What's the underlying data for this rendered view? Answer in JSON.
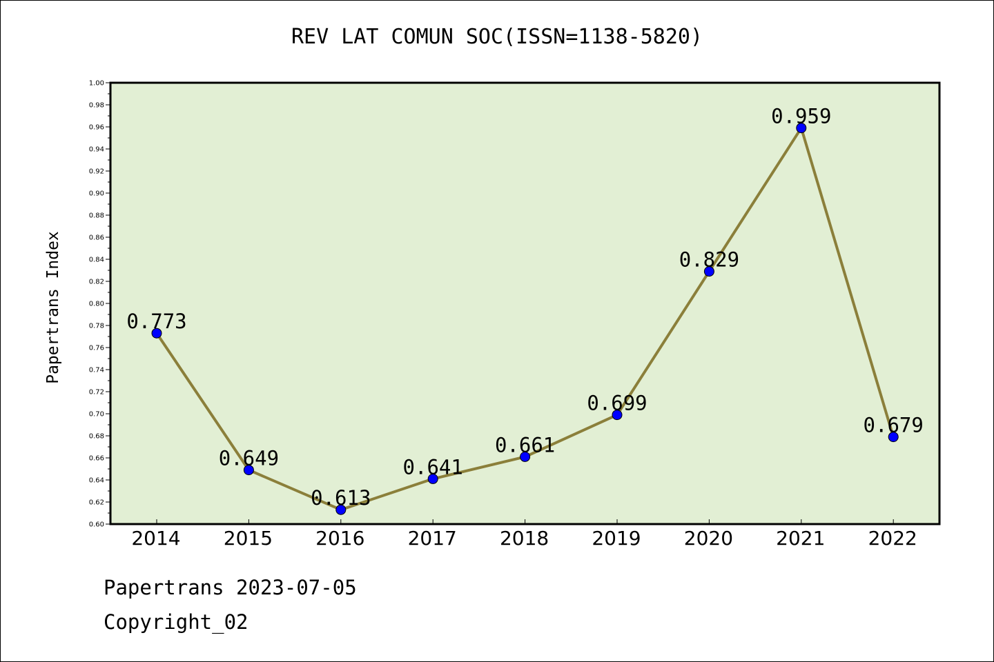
{
  "chart_data": {
    "type": "line",
    "title": "REV LAT COMUN SOC(ISSN=1138-5820)",
    "xlabel": "",
    "ylabel": "Papertrans Index",
    "categories": [
      "2014",
      "2015",
      "2016",
      "2017",
      "2018",
      "2019",
      "2020",
      "2021",
      "2022"
    ],
    "series": [
      {
        "values": [
          0.773,
          0.649,
          0.613,
          0.641,
          0.661,
          0.699,
          0.829,
          0.959,
          0.679
        ],
        "data_labels": [
          "0.773",
          "0.649",
          "0.613",
          "0.641",
          "0.661",
          "0.699",
          "0.829",
          "0.959",
          "0.679"
        ],
        "line_color": "#8b7f3a",
        "marker_color": "#0000ff"
      }
    ],
    "ylim": [
      0.6,
      1.0
    ],
    "y_ticks": [
      "0.60",
      "0.62",
      "0.64",
      "0.66",
      "0.68",
      "0.70",
      "0.72",
      "0.74",
      "0.76",
      "0.78",
      "0.80",
      "0.82",
      "0.84",
      "0.86",
      "0.88",
      "0.90",
      "0.92",
      "0.94",
      "0.96",
      "0.98",
      "1.00"
    ],
    "plot_background": "#e2efd4",
    "grid": false,
    "legend": "none"
  },
  "footer": {
    "line1": "Papertrans 2023-07-05",
    "line2": "Copyright_02"
  }
}
